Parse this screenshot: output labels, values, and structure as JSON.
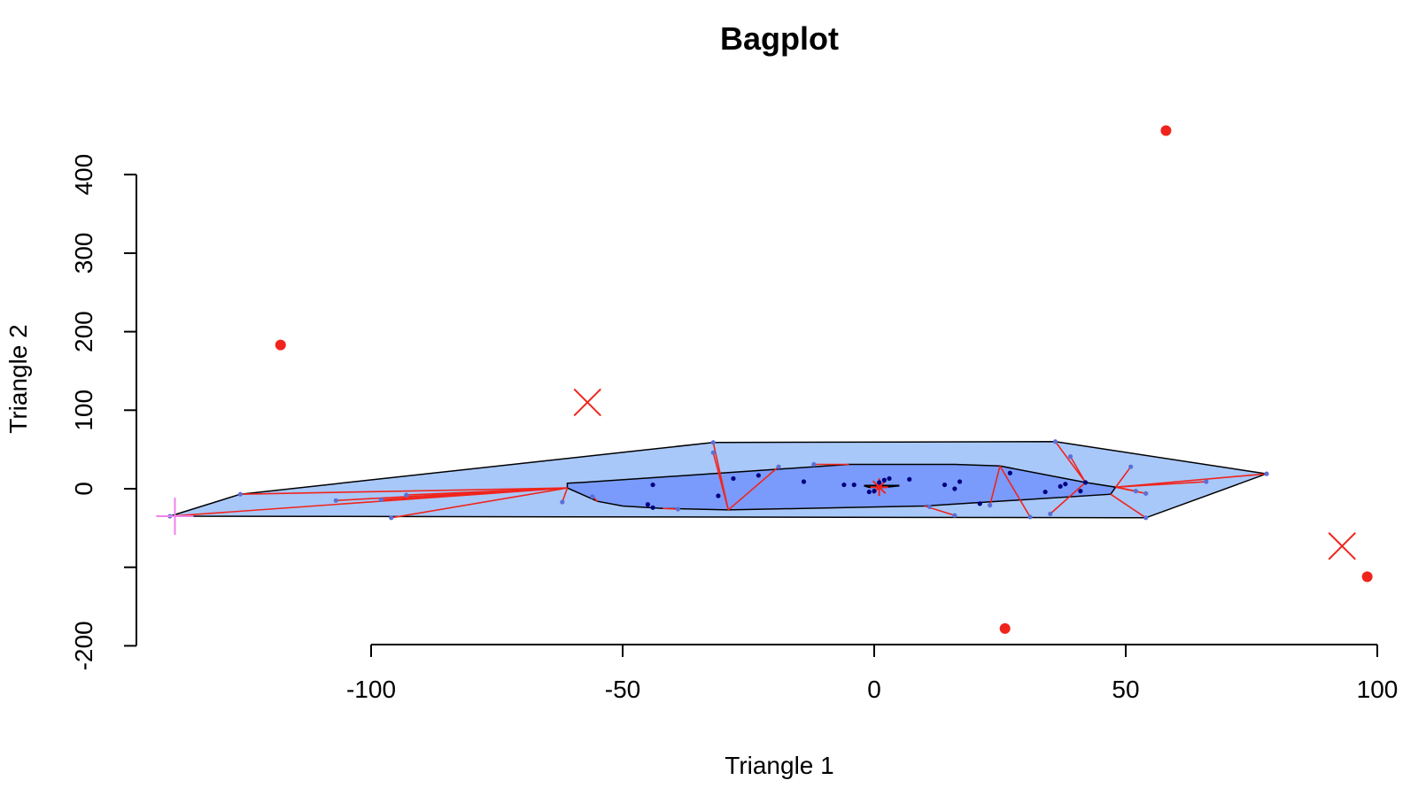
{
  "chart_data": {
    "type": "scatter",
    "title": "Bagplot",
    "xlabel": "Triangle 1",
    "ylabel": "Triangle 2",
    "xlim": [
      -146,
      102
    ],
    "ylim": [
      -205,
      470
    ],
    "xticks": [
      -100,
      -50,
      0,
      50,
      100
    ],
    "xtick_labels": [
      "-100",
      "-50",
      "0",
      "50",
      "100"
    ],
    "yticks": [
      -200,
      -100,
      0,
      100,
      200,
      300,
      400
    ],
    "ytick_labels": [
      "-200",
      "",
      "0",
      "100",
      "200",
      "300",
      "400"
    ],
    "grid": false,
    "colors": {
      "loop": "#a9c8fa",
      "bag": "#7a9bfb",
      "outlier": "#f0241c",
      "spoke": "#f0241c",
      "point_in_loop": "#5b6fd6",
      "point_in_bag": "#000080",
      "bag_outline": "#000000",
      "marker_x": "#f0241c",
      "marker_plus": "#ee82ee"
    },
    "center": [
      1,
      2
    ],
    "loop_hull": [
      [
        -140,
        -35
      ],
      [
        -126,
        -7
      ],
      [
        -32,
        59
      ],
      [
        36,
        60
      ],
      [
        78,
        19
      ],
      [
        54,
        -37
      ],
      [
        -140,
        -35
      ]
    ],
    "bag_polygon": [
      [
        -61,
        7
      ],
      [
        -58,
        8
      ],
      [
        -5,
        31
      ],
      [
        16,
        31
      ],
      [
        25,
        29
      ],
      [
        42,
        8
      ],
      [
        48,
        2
      ],
      [
        47,
        -7
      ],
      [
        10,
        -22
      ],
      [
        -29,
        -27
      ],
      [
        -42,
        -25
      ],
      [
        -50,
        -22
      ],
      [
        -55,
        -16
      ],
      [
        -61,
        1
      ],
      [
        -61,
        7
      ]
    ],
    "median_polygon": [
      [
        -2,
        4
      ],
      [
        5,
        4
      ],
      [
        2,
        2
      ],
      [
        -1,
        2
      ],
      [
        -2,
        4
      ]
    ],
    "loop_points": [
      [
        -140,
        -35
      ],
      [
        -126,
        -7
      ],
      [
        -107,
        -15
      ],
      [
        -98,
        -14
      ],
      [
        -93,
        -8
      ],
      [
        -96,
        -37
      ],
      [
        -62,
        -17
      ],
      [
        -56,
        -10
      ],
      [
        -39,
        -26
      ],
      [
        -32,
        59
      ],
      [
        -32,
        46
      ],
      [
        -19,
        28
      ],
      [
        -12,
        31
      ],
      [
        36,
        60
      ],
      [
        39,
        41
      ],
      [
        51,
        28
      ],
      [
        52,
        -3
      ],
      [
        54,
        -6
      ],
      [
        66,
        9
      ],
      [
        78,
        19
      ],
      [
        54,
        -37
      ],
      [
        35,
        -32
      ],
      [
        31,
        -36
      ],
      [
        23,
        -21
      ],
      [
        16,
        -34
      ],
      [
        11,
        -23
      ]
    ],
    "bag_points": [
      [
        -44,
        5
      ],
      [
        -45,
        -20
      ],
      [
        -44,
        -24
      ],
      [
        -31,
        -9
      ],
      [
        -28,
        13
      ],
      [
        -23,
        17
      ],
      [
        -14,
        9
      ],
      [
        -6,
        5
      ],
      [
        -4,
        5
      ],
      [
        -1,
        -4
      ],
      [
        0,
        -3
      ],
      [
        1,
        8
      ],
      [
        2,
        11
      ],
      [
        3,
        13
      ],
      [
        7,
        12
      ],
      [
        14,
        5
      ],
      [
        16,
        0
      ],
      [
        17,
        9
      ],
      [
        21,
        -19
      ],
      [
        27,
        20
      ],
      [
        34,
        -4
      ],
      [
        37,
        3
      ],
      [
        38,
        6
      ],
      [
        41,
        -3
      ],
      [
        42,
        8
      ]
    ],
    "outliers": [
      [
        -118,
        183
      ],
      [
        26,
        -178
      ],
      [
        58,
        456
      ],
      [
        98,
        -112
      ]
    ],
    "x_markers": [
      [
        -57,
        110
      ],
      [
        93,
        -73
      ]
    ],
    "plus_markers": [
      [
        -139,
        -35
      ]
    ]
  }
}
